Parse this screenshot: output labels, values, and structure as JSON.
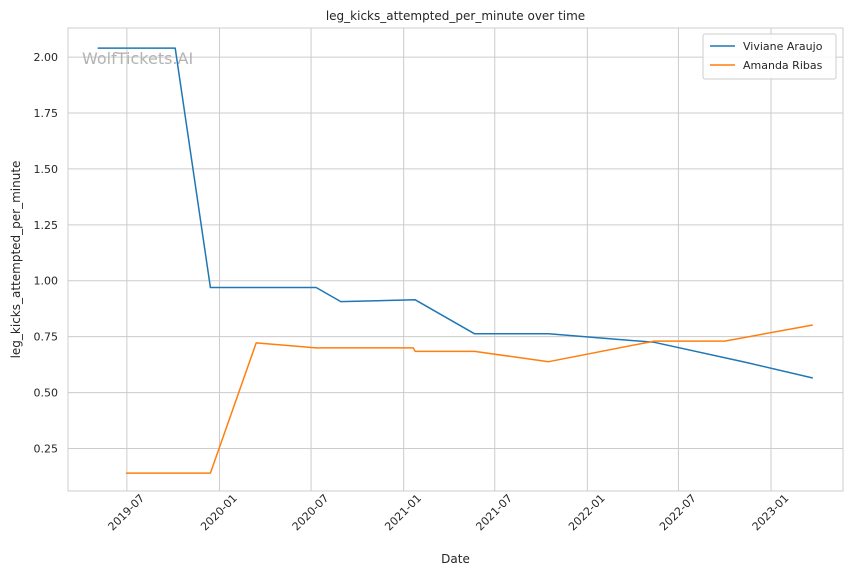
{
  "chart_data": {
    "type": "line",
    "title": "leg_kicks_attempted_per_minute over time",
    "xlabel": "Date",
    "ylabel": "leg_kicks_attempted_per_minute",
    "watermark": "WolfTickets.AI",
    "grid": true,
    "legend_position": "top-right",
    "xlim": [
      "2019-03-06",
      "2023-05-24"
    ],
    "ylim": [
      0.06,
      2.13
    ],
    "x_ticks": [
      "2019-07-01",
      "2020-01-01",
      "2020-07-01",
      "2021-01-01",
      "2021-07-01",
      "2022-01-01",
      "2022-07-01",
      "2023-01-01"
    ],
    "x_tick_labels": [
      "2019-07",
      "2020-01",
      "2020-07",
      "2021-01",
      "2021-07",
      "2022-01",
      "2022-07",
      "2023-01"
    ],
    "y_ticks": [
      0.25,
      0.5,
      0.75,
      1.0,
      1.25,
      1.5,
      1.75,
      2.0
    ],
    "y_tick_labels": [
      "0.25",
      "0.50",
      "0.75",
      "1.00",
      "1.25",
      "1.50",
      "1.75",
      "2.00"
    ],
    "series": [
      {
        "name": "Viviane Araujo",
        "color": "#1f77b4",
        "points": [
          {
            "x": "2019-05-04",
            "y": 2.04
          },
          {
            "x": "2019-10-05",
            "y": 2.04
          },
          {
            "x": "2019-12-14",
            "y": 0.97
          },
          {
            "x": "2020-07-11",
            "y": 0.97
          },
          {
            "x": "2020-08-29",
            "y": 0.907
          },
          {
            "x": "2021-01-24",
            "y": 0.915
          },
          {
            "x": "2021-05-22",
            "y": 0.763
          },
          {
            "x": "2021-10-16",
            "y": 0.763
          },
          {
            "x": "2022-05-14",
            "y": 0.725
          },
          {
            "x": "2022-11-12",
            "y": 0.635
          },
          {
            "x": "2023-03-25",
            "y": 0.565
          }
        ]
      },
      {
        "name": "Amanda Ribas",
        "color": "#ff7f0e",
        "points": [
          {
            "x": "2019-06-29",
            "y": 0.14
          },
          {
            "x": "2019-12-14",
            "y": 0.14
          },
          {
            "x": "2020-03-14",
            "y": 0.722
          },
          {
            "x": "2020-07-11",
            "y": 0.7
          },
          {
            "x": "2021-01-20",
            "y": 0.7
          },
          {
            "x": "2021-01-24",
            "y": 0.684
          },
          {
            "x": "2021-05-22",
            "y": 0.684
          },
          {
            "x": "2021-10-16",
            "y": 0.638
          },
          {
            "x": "2022-05-14",
            "y": 0.73
          },
          {
            "x": "2022-10-01",
            "y": 0.73
          },
          {
            "x": "2023-03-25",
            "y": 0.802
          }
        ]
      }
    ]
  }
}
